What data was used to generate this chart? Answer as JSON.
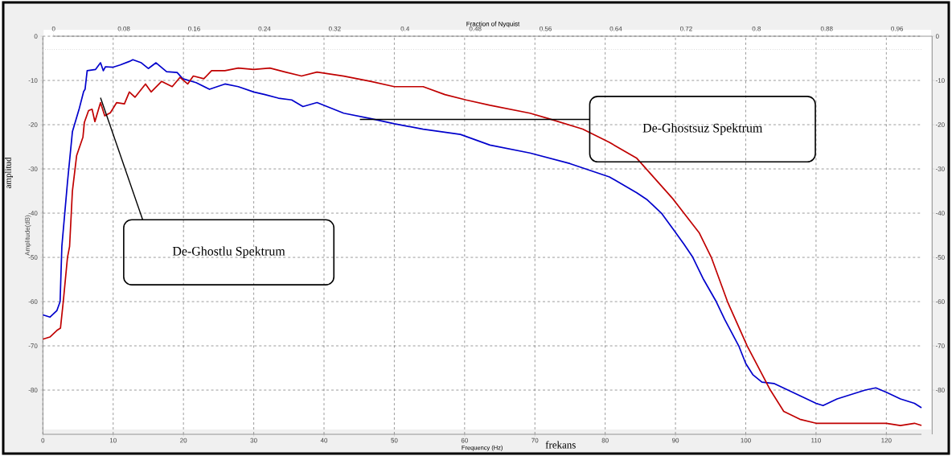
{
  "chart_data": {
    "type": "line",
    "xlabel": "Frequency (Hz)",
    "ylabel": "Amplitude(dB)",
    "x2label": "Fraction of Nyquist",
    "xlim": [
      0,
      125
    ],
    "ylim": [
      -90,
      0
    ],
    "xticks": [
      0,
      10,
      20,
      30,
      40,
      50,
      60,
      70,
      80,
      90,
      100,
      110,
      120
    ],
    "yticks": [
      0,
      -10,
      -20,
      -30,
      -40,
      -50,
      -60,
      -70,
      -80
    ],
    "x2lim": [
      0,
      1
    ],
    "x2ticks": [
      0,
      0.08,
      0.16,
      0.24,
      0.32,
      0.4,
      0.48,
      0.56,
      0.64,
      0.72,
      0.8,
      0.88,
      0.96
    ],
    "y2lim": [
      -90,
      0
    ],
    "y2ticks": [
      0,
      -10,
      -20,
      -30,
      -40,
      -50,
      -60,
      -70,
      -80
    ],
    "grid": true,
    "ref_lines": [
      {
        "axis": "y",
        "value": -3,
        "color": "#c8c8c8",
        "line_style": "dotted"
      }
    ],
    "series": [
      {
        "color": "#0000cc",
        "x": [
          0,
          1,
          2,
          2.45,
          2.7,
          3.5,
          4.2,
          5.2,
          5.8,
          6.0,
          6.3,
          7.5,
          8.2,
          8.6,
          8.9,
          10,
          11,
          12.3,
          12.8,
          14,
          15,
          16.1,
          17.6,
          19.1,
          19.9,
          21.8,
          23.7,
          25.9,
          27.8,
          30,
          31.6,
          33.5,
          35.4,
          37,
          39,
          42.8,
          46.6,
          50,
          54.1,
          59.4,
          63.6,
          69.3,
          75,
          80.6,
          84.5,
          86,
          88,
          89.8,
          91.2,
          92.4,
          94,
          95.8,
          97,
          99,
          100,
          101,
          102.3,
          104,
          106,
          108,
          110,
          111,
          113,
          115,
          117,
          118.5,
          120,
          122,
          124,
          125
        ],
        "values": [
          -63,
          -63.5,
          -62,
          -60,
          -47.5,
          -33,
          -21.6,
          -16.2,
          -12.5,
          -12,
          -7.8,
          -7.5,
          -6,
          -7.8,
          -6.9,
          -7,
          -6.5,
          -5.7,
          -5.3,
          -6,
          -7.3,
          -6,
          -8,
          -8.2,
          -9.6,
          -10.5,
          -12,
          -10.8,
          -11.4,
          -12.6,
          -13.2,
          -14,
          -14.4,
          -15.9,
          -15,
          -17.4,
          -18.6,
          -19.8,
          -21,
          -22.2,
          -24.6,
          -26.4,
          -28.8,
          -31.8,
          -35.4,
          -37,
          -40,
          -43.9,
          -47,
          -49.8,
          -55,
          -60,
          -64,
          -70,
          -74,
          -76.5,
          -78.2,
          -78.5,
          -80,
          -81.5,
          -83,
          -83.5,
          -82,
          -81,
          -80,
          -79.5,
          -80.5,
          -82,
          -83,
          -84
        ]
      },
      {
        "color": "#c00000",
        "x": [
          0,
          1,
          2,
          2.5,
          2.9,
          3.5,
          3.8,
          4.2,
          4.8,
          5.7,
          5.9,
          6.5,
          7,
          7.4,
          8.2,
          8.8,
          9.6,
          10.5,
          11.6,
          12.3,
          13.1,
          14.6,
          15.4,
          16.9,
          18.4,
          19.5,
          20.6,
          21.4,
          22.9,
          24,
          25.9,
          27.8,
          30,
          32.3,
          34.5,
          36.8,
          39,
          42.8,
          46.6,
          50,
          54.1,
          57.2,
          60.2,
          63.6,
          69.3,
          71.9,
          76.8,
          80.6,
          84.5,
          89.6,
          93.4,
          95.1,
          97.4,
          100.2,
          103.5,
          105.4,
          107.7,
          110,
          115,
          120,
          122,
          124,
          125
        ],
        "values": [
          -68.5,
          -68,
          -66.5,
          -66,
          -60,
          -50,
          -47.5,
          -35,
          -27,
          -22.8,
          -19.5,
          -16.8,
          -16.5,
          -19.3,
          -15,
          -18,
          -17.3,
          -15,
          -15.3,
          -12.6,
          -13.8,
          -10.8,
          -12.6,
          -10.2,
          -11.4,
          -9.3,
          -10.8,
          -9,
          -9.6,
          -7.8,
          -7.8,
          -7.2,
          -7.5,
          -7.2,
          -8.1,
          -9,
          -8.1,
          -9,
          -10.2,
          -11.4,
          -11.4,
          -13.2,
          -14.4,
          -15.6,
          -17.4,
          -18.6,
          -21,
          -24,
          -27.6,
          -36.7,
          -44.5,
          -50,
          -60,
          -70,
          -80,
          -84.8,
          -86.6,
          -87.5,
          -87.5,
          -87.5,
          -88,
          -87.5,
          -88
        ]
      }
    ],
    "annotations": [
      "De-Ghostsuz Spektrum",
      "De-Ghostlu Spektrum",
      "amplitud",
      "frekans"
    ]
  }
}
